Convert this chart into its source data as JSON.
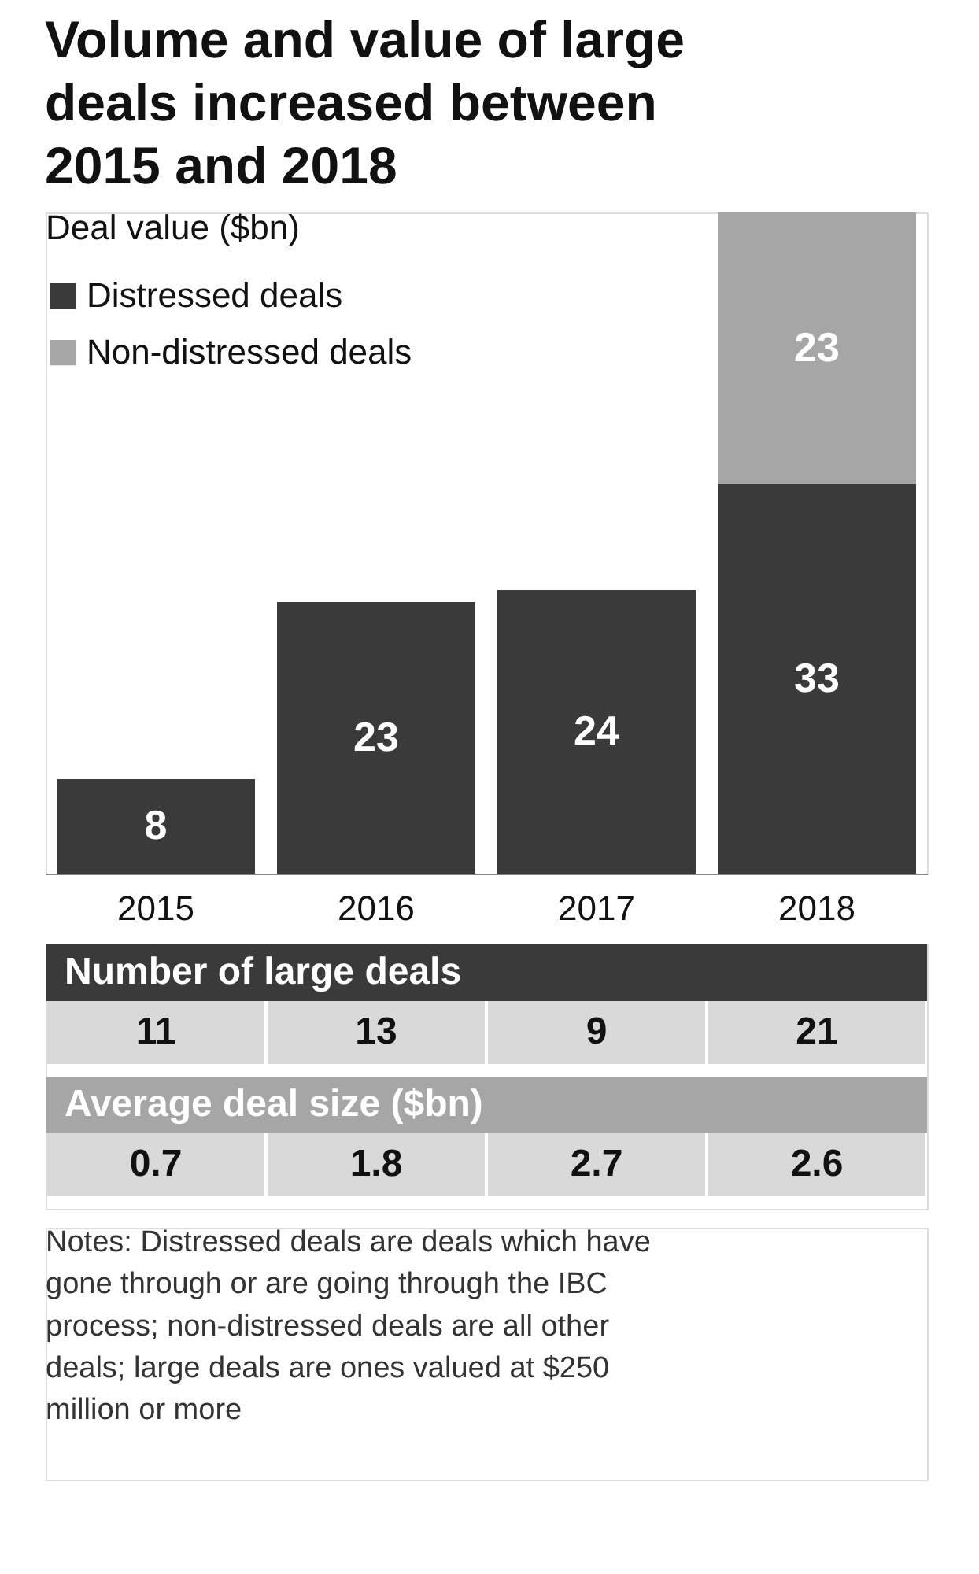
{
  "chart_data": [
    {
      "type": "bar",
      "title": "Volume and value of large deals increased between 2015 and 2018",
      "ylabel": "Deal value ($bn)",
      "categories": [
        "2015",
        "2016",
        "2017",
        "2018"
      ],
      "stacked": true,
      "data_labels": true,
      "legend": "top left",
      "series": [
        {
          "name": "Distressed deals",
          "color": "#3a3a3a",
          "values": [
            8,
            23,
            24,
            33
          ]
        },
        {
          "name": "Non-distressed deals",
          "color": "#a6a6a6",
          "values": [
            null,
            null,
            null,
            23
          ]
        }
      ]
    },
    {
      "type": "other",
      "annotations": [
        "Number of large deals",
        "11",
        "13",
        "9",
        "21",
        "Average deal size ($bn)",
        "0.7",
        "1.8",
        "2.7",
        "2.6",
        "Notes: Distressed deals are deals which have gone through or are going through the IBC process; non-distressed deals are all other deals; large deals are ones valued at $250 million or more"
      ]
    }
  ]
}
